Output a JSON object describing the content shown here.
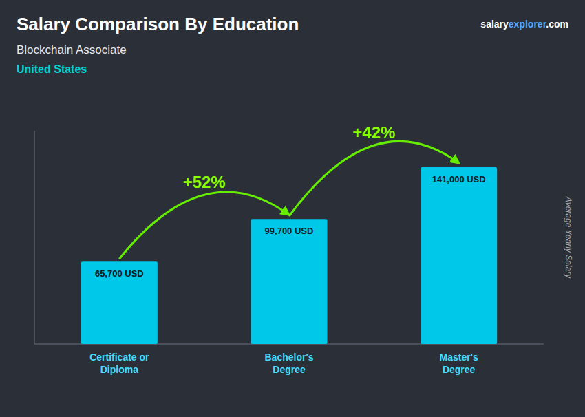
{
  "chart_data": {
    "type": "bar",
    "title": "Salary Comparison By Education",
    "subtitle": "Blockchain Associate",
    "ylabel": "Average Yearly Salary",
    "annotations": [
      "United States",
      "salary",
      "explorer",
      ".com",
      "+52%",
      "+42%"
    ],
    "categories": [
      "Certificate or\nDiploma",
      "Bachelor's\nDegree",
      "Master's\nDegree"
    ],
    "values": [
      65700,
      99700,
      141000
    ],
    "value_labels": [
      "65,700 USD",
      "99,700 USD",
      "141,000 USD"
    ],
    "data_labels": true,
    "color": "#00c8e8",
    "ylim": [
      0,
      170000
    ],
    "tick_labels": "x"
  }
}
